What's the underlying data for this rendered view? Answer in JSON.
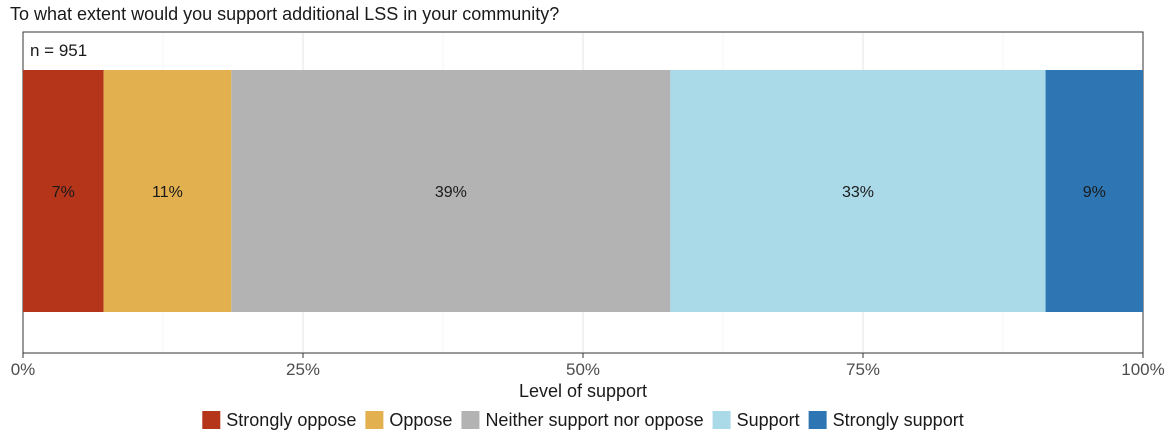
{
  "chart_data": {
    "type": "bar",
    "orientation": "horizontal",
    "stacked": true,
    "title": "To what extent would you support additional LSS in your community?",
    "annotation": "n = 951",
    "xlabel": "Level of support",
    "xlim": [
      0,
      100
    ],
    "x_ticks": [
      "0%",
      "25%",
      "50%",
      "75%",
      "100%"
    ],
    "grid": true,
    "legend_position": "bottom",
    "series": [
      {
        "name": "Strongly oppose",
        "value": 7.2,
        "label": "7%",
        "color": "#b5351a"
      },
      {
        "name": "Oppose",
        "value": 11.4,
        "label": "11%",
        "color": "#e2b04f"
      },
      {
        "name": "Neither support nor oppose",
        "value": 39.2,
        "label": "39%",
        "color": "#b3b3b3"
      },
      {
        "name": "Support",
        "value": 33.5,
        "label": "33%",
        "color": "#aad9e8"
      },
      {
        "name": "Strongly support",
        "value": 8.7,
        "label": "9%",
        "color": "#2d76b3"
      }
    ]
  }
}
